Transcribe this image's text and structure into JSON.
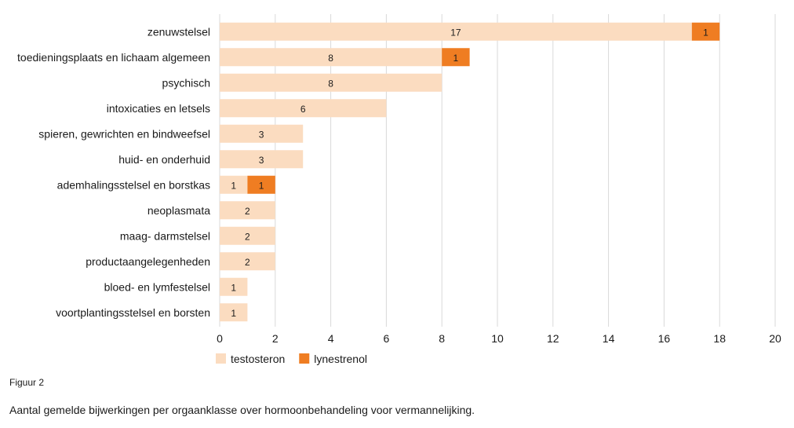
{
  "chart_data": {
    "type": "bar",
    "orientation": "horizontal",
    "stacked": true,
    "categories": [
      "zenuwstelsel",
      "toedieningsplaats en lichaam algemeen",
      "psychisch",
      "intoxicaties en letsels",
      "spieren, gewrichten en bindweefsel",
      "huid- en onderhuid",
      "ademhalingsstelsel en borstkas",
      "neoplasmata",
      "maag- darmstelsel",
      "productaangelegenheden",
      "bloed- en lymfestelsel",
      "voortplantingsstelsel en borsten"
    ],
    "series": [
      {
        "name": "testosteron",
        "color": "#fbdcc0",
        "values": [
          17,
          8,
          8,
          6,
          3,
          3,
          1,
          2,
          2,
          2,
          1,
          1
        ]
      },
      {
        "name": "lynestrenol",
        "color": "#ef7d22",
        "values": [
          1,
          1,
          null,
          null,
          null,
          null,
          1,
          null,
          null,
          null,
          null,
          null
        ]
      }
    ],
    "xlim": [
      0,
      20
    ],
    "xticks": [
      "0",
      "2",
      "4",
      "6",
      "8",
      "10",
      "12",
      "14",
      "16",
      "18",
      "20"
    ],
    "grid": "vertical",
    "legend": "bottom"
  },
  "figure_label": "Figuur 2",
  "caption": "Aantal gemelde bijwerkingen per orgaanklasse over hormoonbehandeling voor vermannelijking."
}
